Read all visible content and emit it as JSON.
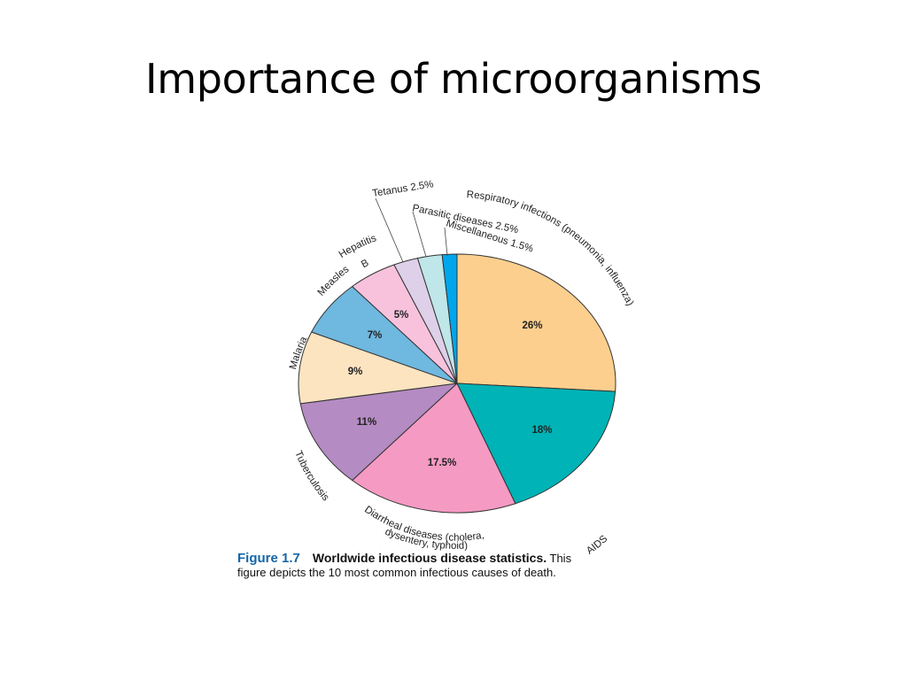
{
  "slide": {
    "title": "Importance of microorganisms"
  },
  "chart_data": {
    "type": "pie",
    "slices": [
      {
        "name": "Respiratory infections (pneumonia, influenza)",
        "value": 26,
        "value_label": "26%",
        "color": "#fccf8e"
      },
      {
        "name": "AIDS",
        "value": 18,
        "value_label": "18%",
        "color": "#00b3b6"
      },
      {
        "name": "Diarrheal diseases (cholera, dysentery, typhoid)",
        "name_lines": [
          "Diarrheal diseases (cholera,",
          "dysentery, typhoid)"
        ],
        "value": 17.5,
        "value_label": "17.5%",
        "color": "#f59ac3"
      },
      {
        "name": "Tuberculosis",
        "value": 11,
        "value_label": "11%",
        "color": "#b48bc2"
      },
      {
        "name": "Malaria",
        "value": 9,
        "value_label": "9%",
        "color": "#fde4c0"
      },
      {
        "name": "Measles",
        "value": 7,
        "value_label": "7%",
        "color": "#6fb8df"
      },
      {
        "name": "Hepatitis B",
        "name_lines": [
          "Hepatitis",
          "B"
        ],
        "value": 5,
        "value_label": "5%",
        "color": "#f8c2dd"
      },
      {
        "name": "Tetanus 2.5%",
        "value": 2.5,
        "color": "#ddd0e8"
      },
      {
        "name": "Parasitic diseases 2.5%",
        "value": 2.5,
        "color": "#bfe6e8"
      },
      {
        "name": "Miscellaneous 1.5%",
        "value": 1.5,
        "color": "#00a6ec"
      }
    ]
  },
  "caption": {
    "figure_label": "Figure 1.7",
    "title": "Worldwide infectious disease statistics.",
    "text_line1_end": "This",
    "text_line2": "figure depicts the 10 most common infectious causes of death."
  }
}
